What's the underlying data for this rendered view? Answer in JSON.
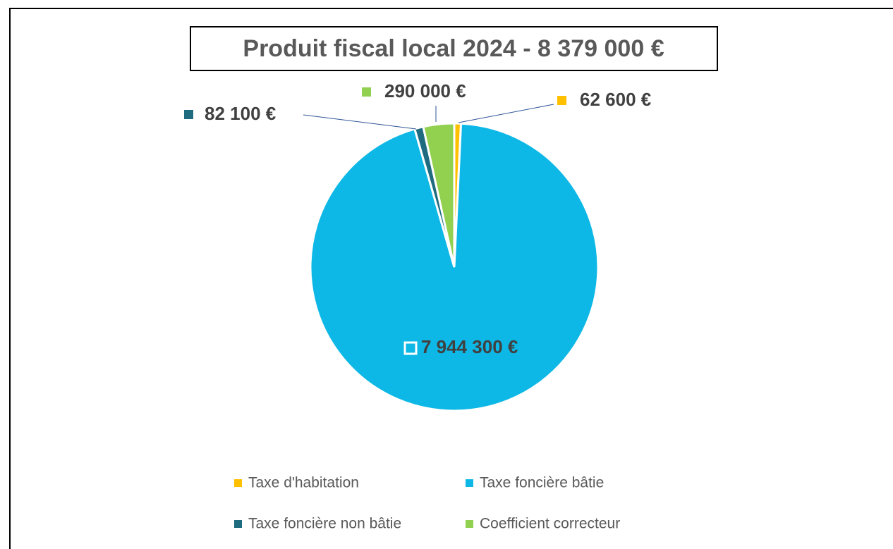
{
  "chart_data": {
    "type": "pie",
    "title": "Produit fiscal local 2024 - 8 379 000 €",
    "categories": [
      "Taxe d'habitation",
      "Taxe foncière bâtie",
      "Taxe foncière non bâtie",
      "Coefficient correcteur"
    ],
    "values": [
      62600,
      7944300,
      82100,
      290000
    ],
    "value_labels": [
      "62 600 €",
      "7 944 300 €",
      "82 100 €",
      "290 000 €"
    ],
    "colors": [
      "#FFC000",
      "#0DB8E6",
      "#1F6B80",
      "#92D050"
    ],
    "legend": "bottom"
  }
}
